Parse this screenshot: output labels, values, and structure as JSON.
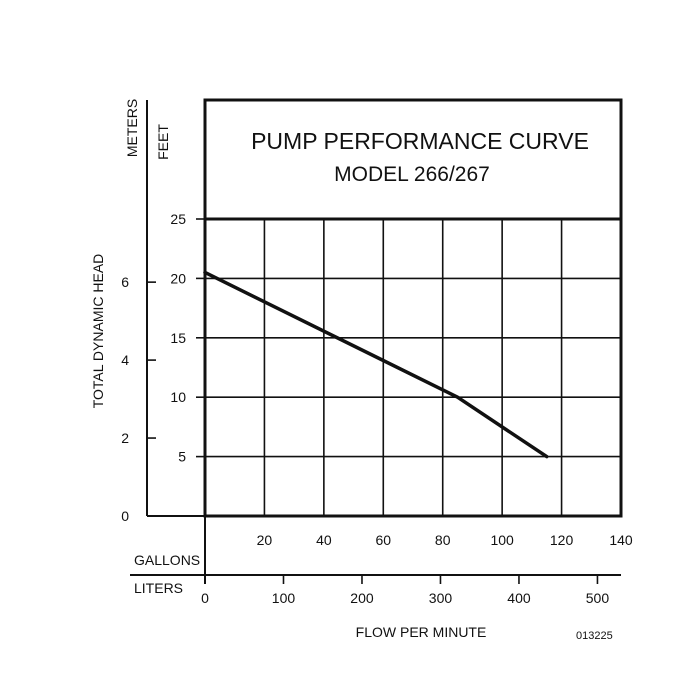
{
  "chart_data": {
    "type": "line",
    "title": "PUMP PERFORMANCE CURVE",
    "subtitle": "MODEL 266/267",
    "ylabel": "TOTAL DYNAMIC HEAD",
    "xlabel": "FLOW PER MINUTE",
    "figure_code": "013225",
    "grid": true,
    "axes": {
      "meters": {
        "label": "METERS",
        "ticks": [
          "0",
          "2",
          "4",
          "6"
        ],
        "ylim": [
          0,
          7.62
        ]
      },
      "feet": {
        "label": "FEET",
        "ticks": [
          "5",
          "10",
          "15",
          "20",
          "25"
        ],
        "ylim": [
          0,
          25
        ]
      },
      "gallons": {
        "label": "GALLONS",
        "ticks": [
          "20",
          "40",
          "60",
          "80",
          "100",
          "120",
          "140"
        ],
        "xlim": [
          0,
          140
        ]
      },
      "liters": {
        "label": "LITERS",
        "ticks": [
          "0",
          "100",
          "200",
          "300",
          "400",
          "500"
        ],
        "xlim": [
          0,
          530
        ]
      }
    },
    "series": [
      {
        "x": [
          0,
          85,
          115
        ],
        "y": [
          20.5,
          10.0,
          5.0
        ],
        "x_unit": "gallons per minute",
        "y_unit": "feet"
      }
    ],
    "line_color": "#111111"
  }
}
